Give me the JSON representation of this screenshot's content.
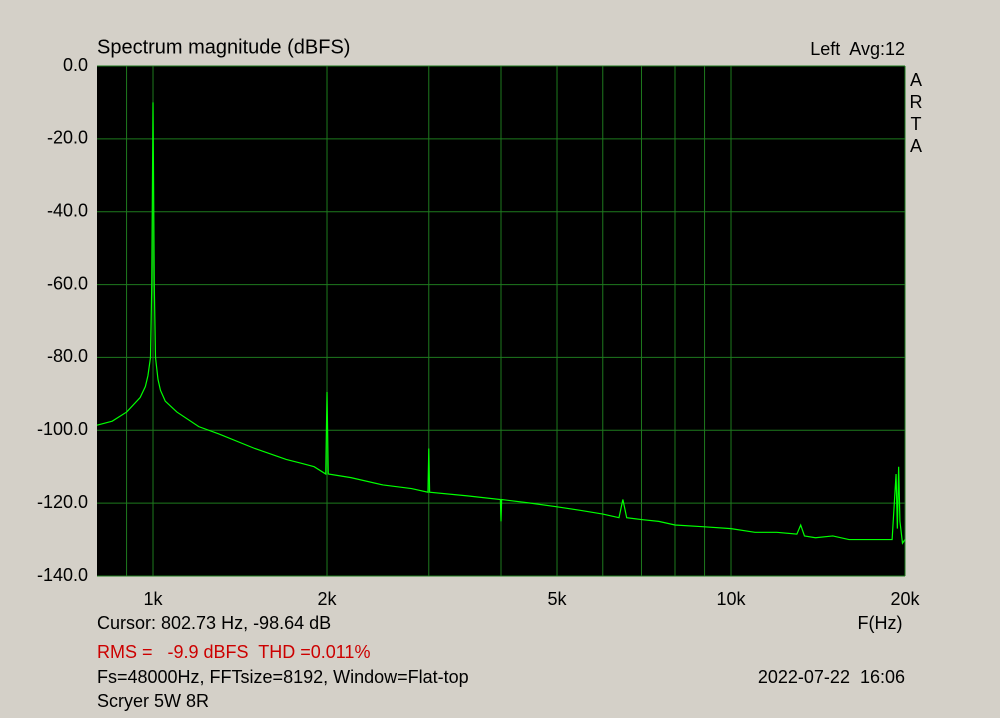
{
  "chart_data": {
    "type": "line",
    "title": "Spectrum magnitude (dBFS)",
    "channel_label": "Left  Avg:12",
    "watermark": "ARTA",
    "cursor_text": "Cursor: 802.73 Hz, -98.64 dB",
    "x_label": "F(Hz)",
    "rms_thd_text": "RMS =   -9.9 dBFS  THD =0.011%",
    "settings_text": "Fs=48000Hz, FFTsize=8192, Window=Flat-top",
    "timestamp": "2022-07-22  16:06",
    "device_text": "Scryer 5W 8R",
    "x_log": true,
    "grid": true,
    "xlim": [
      800,
      20000
    ],
    "ylim": [
      -140,
      0
    ],
    "xticks": [
      {
        "value": 1000,
        "label": "1k"
      },
      {
        "value": 2000,
        "label": "2k"
      },
      {
        "value": 5000,
        "label": "5k"
      },
      {
        "value": 10000,
        "label": "10k"
      },
      {
        "value": 20000,
        "label": "20k"
      }
    ],
    "x_minor_grid": [
      900,
      3000,
      4000,
      6000,
      7000,
      8000,
      9000
    ],
    "yticks": [
      {
        "value": 0,
        "label": "0.0"
      },
      {
        "value": -20,
        "label": "-20.0"
      },
      {
        "value": -40,
        "label": "-40.0"
      },
      {
        "value": -60,
        "label": "-60.0"
      },
      {
        "value": -80,
        "label": "-80.0"
      },
      {
        "value": -100,
        "label": "-100.0"
      },
      {
        "value": -120,
        "label": "-120.0"
      },
      {
        "value": -140,
        "label": "-140.0"
      }
    ],
    "x": [
      800,
      850,
      900,
      950,
      970,
      980,
      990,
      995,
      1000,
      1005,
      1010,
      1020,
      1030,
      1050,
      1100,
      1200,
      1300,
      1500,
      1700,
      1800,
      1900,
      1990,
      2000,
      2010,
      2200,
      2500,
      2800,
      2990,
      3000,
      3010,
      3500,
      3990,
      4000,
      4010,
      4500,
      5000,
      5500,
      6000,
      6400,
      6500,
      6600,
      7000,
      7500,
      8000,
      9000,
      10000,
      11000,
      12000,
      13000,
      13200,
      13400,
      14000,
      15000,
      16000,
      17000,
      18000,
      19000,
      19300,
      19400,
      19500,
      19600,
      19800,
      20000
    ],
    "series": [
      {
        "color": "#00ff00",
        "values": [
          -98.6,
          -97.5,
          -95,
          -91,
          -88,
          -85,
          -80,
          -60,
          -10,
          -60,
          -80,
          -86,
          -89,
          -92,
          -95,
          -99,
          -101,
          -105,
          -108,
          -109,
          -110,
          -112,
          -89.5,
          -112,
          -113,
          -115,
          -116,
          -117,
          -105,
          -117,
          -118,
          -119,
          -125,
          -119,
          -120,
          -121,
          -122,
          -123,
          -124,
          -119,
          -124,
          -124.5,
          -125,
          -126,
          -126.5,
          -127,
          -128,
          -128,
          -128.5,
          -126,
          -129,
          -129.5,
          -129,
          -130,
          -130,
          -130,
          -130,
          -112,
          -127,
          -110,
          -125,
          -131,
          -130
        ]
      }
    ]
  }
}
